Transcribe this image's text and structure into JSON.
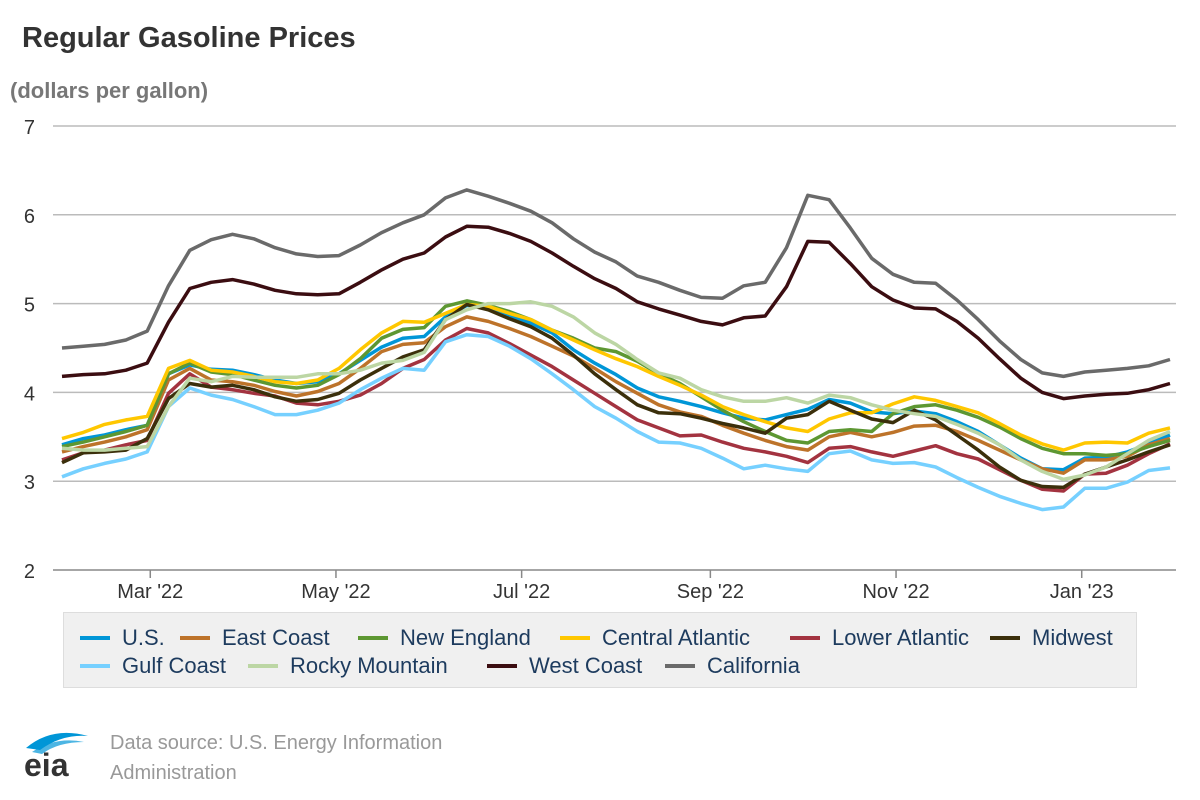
{
  "title": "Regular Gasoline Prices",
  "subtitle": "(dollars per gallon)",
  "source": {
    "line1": "Data source: U.S. Energy Information",
    "line2": "Administration",
    "logo_text": "eia"
  },
  "chart_data": {
    "type": "line",
    "title": "Regular Gasoline Prices",
    "ylabel": "(dollars per gallon)",
    "ylim": [
      2,
      7
    ],
    "yticks": [
      2,
      3,
      4,
      5,
      6,
      7
    ],
    "grid": true,
    "legend": "bottom",
    "xticks": [
      {
        "date": "2022-03-01",
        "label": "Mar '22"
      },
      {
        "date": "2022-05-01",
        "label": "May '22"
      },
      {
        "date": "2022-07-01",
        "label": "Jul '22"
      },
      {
        "date": "2022-09-01",
        "label": "Sep '22"
      },
      {
        "date": "2022-11-01",
        "label": "Nov '22"
      },
      {
        "date": "2023-01-01",
        "label": "Jan '23"
      }
    ],
    "x": [
      "2022-01-31",
      "2022-02-07",
      "2022-02-14",
      "2022-02-21",
      "2022-02-28",
      "2022-03-07",
      "2022-03-14",
      "2022-03-21",
      "2022-03-28",
      "2022-04-04",
      "2022-04-11",
      "2022-04-18",
      "2022-04-25",
      "2022-05-02",
      "2022-05-09",
      "2022-05-16",
      "2022-05-23",
      "2022-05-30",
      "2022-06-06",
      "2022-06-13",
      "2022-06-20",
      "2022-06-27",
      "2022-07-04",
      "2022-07-11",
      "2022-07-18",
      "2022-07-25",
      "2022-08-01",
      "2022-08-08",
      "2022-08-15",
      "2022-08-22",
      "2022-08-29",
      "2022-09-05",
      "2022-09-12",
      "2022-09-19",
      "2022-09-26",
      "2022-10-03",
      "2022-10-10",
      "2022-10-17",
      "2022-10-24",
      "2022-10-31",
      "2022-11-07",
      "2022-11-14",
      "2022-11-21",
      "2022-11-28",
      "2022-12-05",
      "2022-12-12",
      "2022-12-19",
      "2022-12-26",
      "2023-01-02",
      "2023-01-09",
      "2023-01-16",
      "2023-01-23",
      "2023-01-30"
    ],
    "series": [
      {
        "name": "U.S.",
        "color": "#0096d7",
        "values": [
          3.41,
          3.48,
          3.52,
          3.58,
          3.63,
          4.21,
          4.31,
          4.26,
          4.25,
          4.2,
          4.14,
          4.1,
          4.12,
          4.21,
          4.36,
          4.51,
          4.61,
          4.63,
          4.85,
          4.98,
          4.97,
          4.87,
          4.78,
          4.67,
          4.48,
          4.33,
          4.2,
          4.05,
          3.95,
          3.9,
          3.84,
          3.77,
          3.71,
          3.69,
          3.75,
          3.81,
          3.92,
          3.88,
          3.78,
          3.76,
          3.79,
          3.76,
          3.67,
          3.56,
          3.41,
          3.26,
          3.14,
          3.13,
          3.26,
          3.27,
          3.33,
          3.42,
          3.52
        ]
      },
      {
        "name": "East Coast",
        "color": "#bd732a",
        "values": [
          3.33,
          3.39,
          3.44,
          3.5,
          3.58,
          4.14,
          4.27,
          4.14,
          4.12,
          4.08,
          4.01,
          3.96,
          4.01,
          4.1,
          4.27,
          4.46,
          4.54,
          4.56,
          4.74,
          4.85,
          4.8,
          4.72,
          4.63,
          4.52,
          4.41,
          4.27,
          4.12,
          3.99,
          3.86,
          3.78,
          3.73,
          3.63,
          3.54,
          3.46,
          3.39,
          3.35,
          3.5,
          3.55,
          3.5,
          3.55,
          3.62,
          3.63,
          3.56,
          3.46,
          3.35,
          3.24,
          3.14,
          3.09,
          3.24,
          3.24,
          3.28,
          3.41,
          3.48
        ]
      },
      {
        "name": "New England",
        "color": "#5d9732",
        "values": [
          3.39,
          3.44,
          3.5,
          3.56,
          3.63,
          4.21,
          4.33,
          4.23,
          4.2,
          4.14,
          4.08,
          4.05,
          4.08,
          4.2,
          4.38,
          4.61,
          4.71,
          4.73,
          4.97,
          5.03,
          4.98,
          4.91,
          4.82,
          4.7,
          4.61,
          4.5,
          4.46,
          4.35,
          4.21,
          4.1,
          3.95,
          3.8,
          3.67,
          3.56,
          3.46,
          3.43,
          3.56,
          3.58,
          3.56,
          3.76,
          3.84,
          3.86,
          3.8,
          3.72,
          3.61,
          3.48,
          3.37,
          3.31,
          3.31,
          3.29,
          3.31,
          3.39,
          3.46
        ]
      },
      {
        "name": "Central Atlantic",
        "color": "#ffc700",
        "values": [
          3.48,
          3.55,
          3.64,
          3.69,
          3.73,
          4.27,
          4.36,
          4.25,
          4.23,
          4.18,
          4.12,
          4.1,
          4.14,
          4.27,
          4.48,
          4.67,
          4.8,
          4.79,
          4.89,
          4.99,
          4.97,
          4.89,
          4.82,
          4.7,
          4.59,
          4.48,
          4.38,
          4.29,
          4.18,
          4.08,
          3.97,
          3.84,
          3.75,
          3.67,
          3.6,
          3.56,
          3.7,
          3.77,
          3.77,
          3.87,
          3.95,
          3.91,
          3.84,
          3.77,
          3.65,
          3.52,
          3.42,
          3.35,
          3.43,
          3.44,
          3.43,
          3.54,
          3.6
        ]
      },
      {
        "name": "Lower Atlantic",
        "color": "#a33340",
        "values": [
          3.24,
          3.32,
          3.35,
          3.41,
          3.46,
          3.99,
          4.21,
          4.06,
          4.03,
          3.99,
          3.96,
          3.88,
          3.86,
          3.9,
          3.97,
          4.1,
          4.27,
          4.37,
          4.59,
          4.72,
          4.67,
          4.55,
          4.42,
          4.29,
          4.14,
          3.99,
          3.84,
          3.69,
          3.6,
          3.51,
          3.52,
          3.44,
          3.37,
          3.33,
          3.28,
          3.21,
          3.37,
          3.39,
          3.33,
          3.28,
          3.34,
          3.4,
          3.31,
          3.25,
          3.13,
          3.01,
          2.91,
          2.89,
          3.08,
          3.09,
          3.18,
          3.31,
          3.42
        ]
      },
      {
        "name": "Midwest",
        "color": "#3b2f0b",
        "values": [
          3.21,
          3.32,
          3.33,
          3.35,
          3.48,
          3.93,
          4.1,
          4.06,
          4.08,
          4.03,
          3.95,
          3.9,
          3.92,
          3.99,
          4.14,
          4.27,
          4.4,
          4.48,
          4.82,
          4.99,
          4.93,
          4.83,
          4.74,
          4.61,
          4.42,
          4.21,
          4.03,
          3.86,
          3.77,
          3.76,
          3.71,
          3.65,
          3.6,
          3.54,
          3.71,
          3.75,
          3.9,
          3.8,
          3.7,
          3.66,
          3.8,
          3.69,
          3.52,
          3.35,
          3.16,
          3.01,
          2.94,
          2.93,
          3.08,
          3.16,
          3.24,
          3.33,
          3.41
        ]
      },
      {
        "name": "Gulf Coast",
        "color": "#76d0ff",
        "values": [
          3.05,
          3.14,
          3.2,
          3.25,
          3.33,
          3.84,
          4.05,
          3.97,
          3.92,
          3.84,
          3.75,
          3.75,
          3.8,
          3.88,
          4.03,
          4.16,
          4.27,
          4.25,
          4.57,
          4.65,
          4.63,
          4.52,
          4.38,
          4.21,
          4.03,
          3.84,
          3.71,
          3.56,
          3.44,
          3.43,
          3.37,
          3.26,
          3.14,
          3.18,
          3.14,
          3.11,
          3.31,
          3.34,
          3.24,
          3.2,
          3.21,
          3.16,
          3.04,
          2.93,
          2.83,
          2.75,
          2.68,
          2.71,
          2.92,
          2.92,
          2.99,
          3.12,
          3.15
        ]
      },
      {
        "name": "Rocky Mountain",
        "color": "#bcd6a4",
        "values": [
          3.37,
          3.35,
          3.35,
          3.37,
          3.39,
          3.84,
          4.16,
          4.12,
          4.18,
          4.17,
          4.17,
          4.17,
          4.21,
          4.21,
          4.25,
          4.33,
          4.36,
          4.45,
          4.82,
          4.93,
          5.0,
          5.0,
          5.02,
          4.97,
          4.85,
          4.67,
          4.54,
          4.37,
          4.22,
          4.16,
          4.03,
          3.95,
          3.9,
          3.9,
          3.94,
          3.88,
          3.97,
          3.94,
          3.86,
          3.8,
          3.76,
          3.73,
          3.64,
          3.54,
          3.41,
          3.24,
          3.11,
          3.02,
          3.07,
          3.16,
          3.31,
          3.46,
          3.56
        ]
      },
      {
        "name": "West Coast",
        "color": "#3b0d11",
        "values": [
          4.18,
          4.2,
          4.21,
          4.25,
          4.33,
          4.79,
          5.17,
          5.24,
          5.27,
          5.22,
          5.15,
          5.11,
          5.1,
          5.11,
          5.24,
          5.38,
          5.5,
          5.57,
          5.75,
          5.87,
          5.86,
          5.79,
          5.7,
          5.57,
          5.42,
          5.28,
          5.17,
          5.02,
          4.94,
          4.87,
          4.8,
          4.76,
          4.84,
          4.86,
          5.19,
          5.7,
          5.69,
          5.45,
          5.19,
          5.04,
          4.95,
          4.94,
          4.8,
          4.61,
          4.38,
          4.16,
          4.0,
          3.93,
          3.96,
          3.98,
          3.99,
          4.03,
          4.1
        ]
      },
      {
        "name": "California",
        "color": "#6a6a6a",
        "values": [
          4.5,
          4.52,
          4.54,
          4.59,
          4.69,
          5.2,
          5.6,
          5.72,
          5.78,
          5.73,
          5.63,
          5.56,
          5.53,
          5.54,
          5.66,
          5.8,
          5.91,
          6.0,
          6.19,
          6.28,
          6.21,
          6.13,
          6.04,
          5.91,
          5.73,
          5.58,
          5.47,
          5.31,
          5.24,
          5.15,
          5.07,
          5.06,
          5.2,
          5.24,
          5.63,
          6.22,
          6.17,
          5.85,
          5.51,
          5.33,
          5.24,
          5.23,
          5.04,
          4.82,
          4.58,
          4.37,
          4.22,
          4.18,
          4.23,
          4.25,
          4.27,
          4.3,
          4.37
        ]
      }
    ]
  }
}
